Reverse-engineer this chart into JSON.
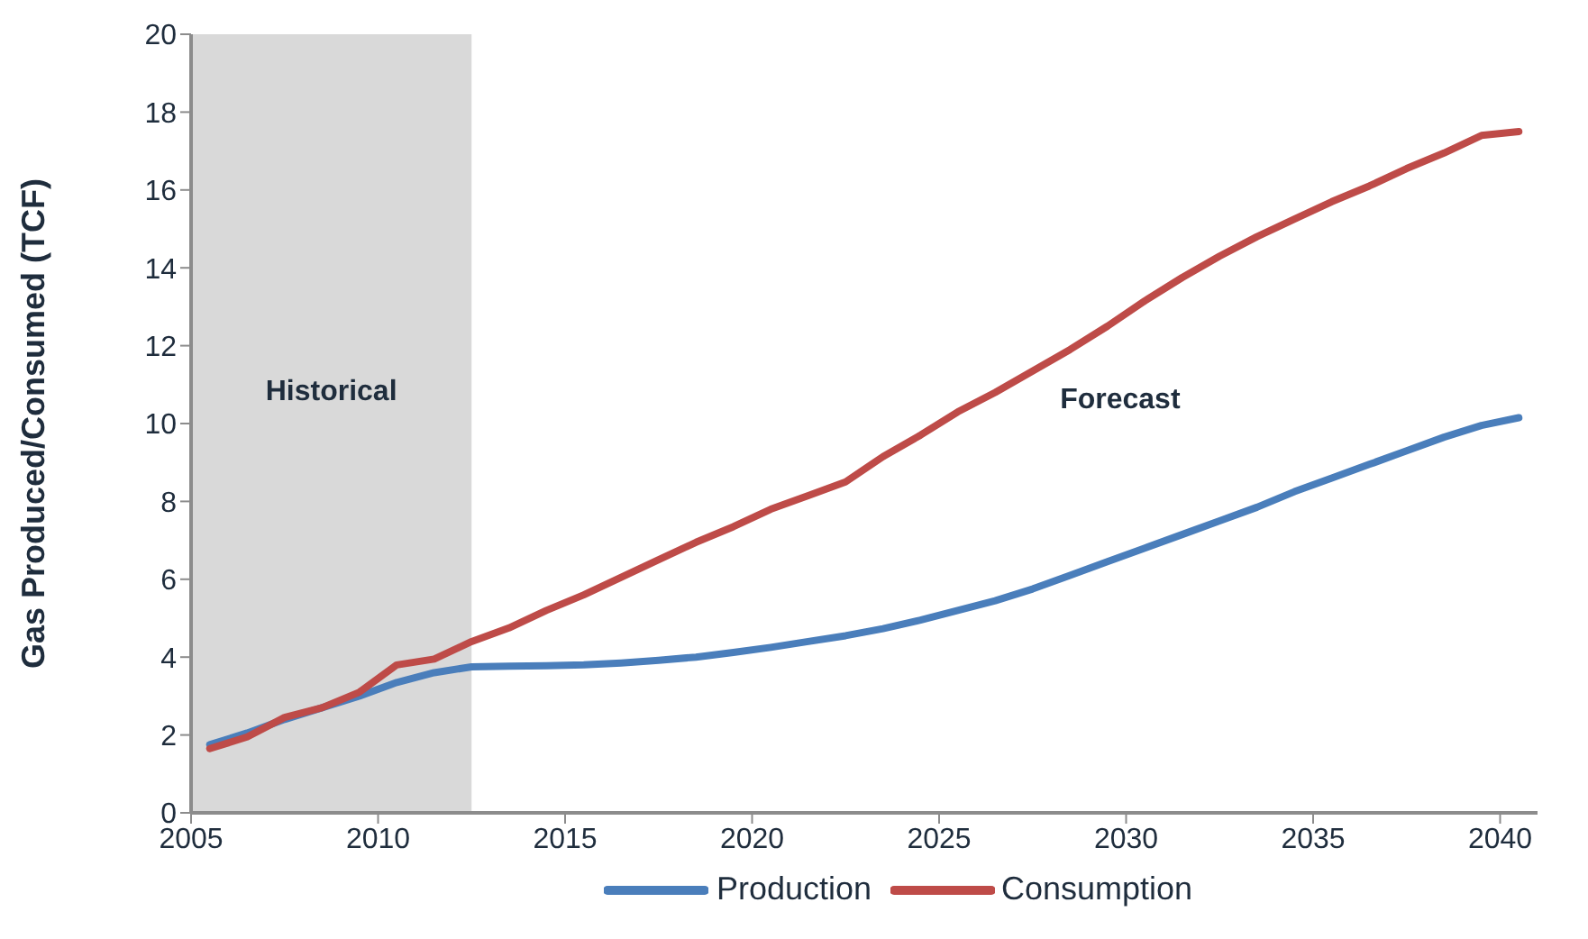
{
  "chart_data": {
    "type": "line",
    "ylabel": "Gas Produced/Consumed (TCF)",
    "x": [
      2005.5,
      2006.5,
      2007.5,
      2008.5,
      2009.5,
      2010.5,
      2011.5,
      2012.5,
      2013.5,
      2014.5,
      2015.5,
      2016.5,
      2017.5,
      2018.5,
      2019.5,
      2020.5,
      2021.5,
      2022.5,
      2023.5,
      2024.5,
      2025.5,
      2026.5,
      2027.5,
      2028.5,
      2029.5,
      2030.5,
      2031.5,
      2032.5,
      2033.5,
      2034.5,
      2035.5,
      2036.5,
      2037.5,
      2038.5,
      2039.5,
      2040.5
    ],
    "series": [
      {
        "name": "Production",
        "color": "#4a7ebb",
        "values": [
          1.75,
          2.05,
          2.4,
          2.7,
          3.0,
          3.35,
          3.6,
          3.75,
          3.77,
          3.78,
          3.8,
          3.85,
          3.92,
          4.0,
          4.12,
          4.25,
          4.4,
          4.55,
          4.73,
          4.95,
          5.2,
          5.45,
          5.75,
          6.1,
          6.45,
          6.8,
          7.15,
          7.5,
          7.85,
          8.25,
          8.6,
          8.95,
          9.3,
          9.65,
          9.95,
          10.15
        ]
      },
      {
        "name": "Consumption",
        "color": "#be4b48",
        "values": [
          1.65,
          1.95,
          2.45,
          2.7,
          3.1,
          3.8,
          3.95,
          4.4,
          4.75,
          5.2,
          5.6,
          6.05,
          6.5,
          6.95,
          7.35,
          7.8,
          8.15,
          8.5,
          9.15,
          9.7,
          10.3,
          10.8,
          11.35,
          11.9,
          12.5,
          13.15,
          13.75,
          14.3,
          14.8,
          15.25,
          15.7,
          16.1,
          16.55,
          16.95,
          17.4,
          17.5
        ]
      }
    ],
    "xlim": [
      2005,
      2041
    ],
    "xticks": [
      2005,
      2010,
      2015,
      2020,
      2025,
      2030,
      2035,
      2040
    ],
    "ylim": [
      0,
      20
    ],
    "yticks": [
      0,
      2,
      4,
      6,
      8,
      10,
      12,
      14,
      16,
      18,
      20
    ],
    "bands": [
      {
        "axis": "x",
        "from": 2005,
        "to": 2012.5,
        "label": "Historical",
        "color": "#d9d9d9"
      }
    ],
    "annotations": [
      "Forecast"
    ],
    "legend": "bottom",
    "grid": false,
    "marker": "none",
    "line_style": "solid"
  }
}
